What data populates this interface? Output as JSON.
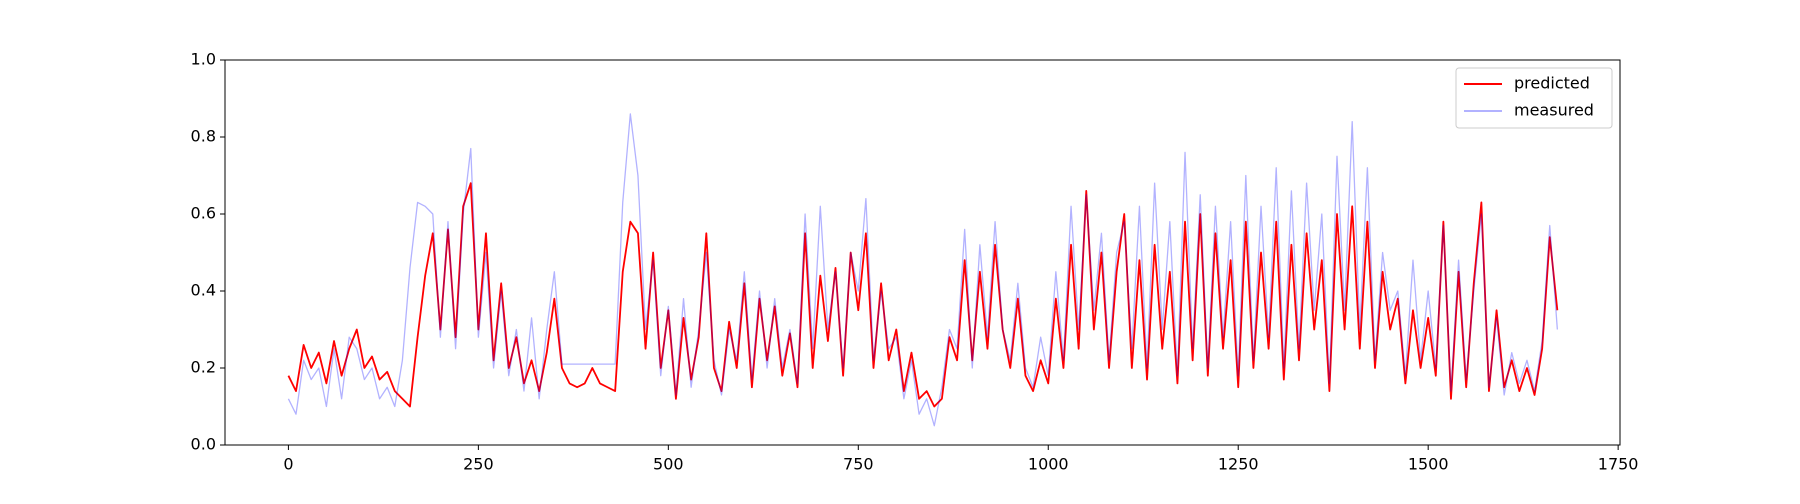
{
  "chart_data": {
    "type": "line",
    "x": [
      0,
      10,
      20,
      30,
      40,
      50,
      60,
      70,
      80,
      90,
      100,
      110,
      120,
      130,
      140,
      150,
      160,
      170,
      180,
      190,
      200,
      210,
      220,
      230,
      240,
      250,
      260,
      270,
      280,
      290,
      300,
      310,
      320,
      330,
      340,
      350,
      360,
      370,
      380,
      390,
      400,
      410,
      420,
      430,
      440,
      450,
      460,
      470,
      480,
      490,
      500,
      510,
      520,
      530,
      540,
      550,
      560,
      570,
      580,
      590,
      600,
      610,
      620,
      630,
      640,
      650,
      660,
      670,
      680,
      690,
      700,
      710,
      720,
      730,
      740,
      750,
      760,
      770,
      780,
      790,
      800,
      810,
      820,
      830,
      840,
      850,
      860,
      870,
      880,
      890,
      900,
      910,
      920,
      930,
      940,
      950,
      960,
      970,
      980,
      990,
      1000,
      1010,
      1020,
      1030,
      1040,
      1050,
      1060,
      1070,
      1080,
      1090,
      1100,
      1110,
      1120,
      1130,
      1140,
      1150,
      1160,
      1170,
      1180,
      1190,
      1200,
      1210,
      1220,
      1230,
      1240,
      1250,
      1260,
      1270,
      1280,
      1290,
      1300,
      1310,
      1320,
      1330,
      1340,
      1350,
      1360,
      1370,
      1380,
      1390,
      1400,
      1410,
      1420,
      1430,
      1440,
      1450,
      1460,
      1470,
      1480,
      1490,
      1500,
      1510,
      1520,
      1530,
      1540,
      1550,
      1560,
      1570,
      1580,
      1590,
      1600,
      1610,
      1620,
      1630,
      1640,
      1650,
      1660,
      1670
    ],
    "series": [
      {
        "name": "predicted",
        "color": "#ff0000",
        "alpha": 1,
        "values": [
          0.18,
          0.14,
          0.26,
          0.2,
          0.24,
          0.16,
          0.27,
          0.18,
          0.25,
          0.3,
          0.2,
          0.23,
          0.17,
          0.19,
          0.14,
          0.12,
          0.1,
          0.28,
          0.44,
          0.55,
          0.3,
          0.56,
          0.28,
          0.62,
          0.68,
          0.3,
          0.55,
          0.22,
          0.42,
          0.2,
          0.28,
          0.16,
          0.22,
          0.14,
          0.24,
          0.38,
          0.2,
          0.16,
          0.15,
          0.16,
          0.2,
          0.16,
          0.15,
          0.14,
          0.45,
          0.58,
          0.55,
          0.25,
          0.5,
          0.2,
          0.35,
          0.12,
          0.33,
          0.17,
          0.28,
          0.55,
          0.2,
          0.14,
          0.32,
          0.2,
          0.42,
          0.15,
          0.38,
          0.22,
          0.36,
          0.18,
          0.29,
          0.15,
          0.55,
          0.2,
          0.44,
          0.27,
          0.46,
          0.18,
          0.5,
          0.35,
          0.55,
          0.2,
          0.42,
          0.22,
          0.3,
          0.14,
          0.24,
          0.12,
          0.14,
          0.1,
          0.12,
          0.28,
          0.22,
          0.48,
          0.22,
          0.45,
          0.25,
          0.52,
          0.3,
          0.2,
          0.38,
          0.18,
          0.14,
          0.22,
          0.16,
          0.38,
          0.2,
          0.52,
          0.25,
          0.66,
          0.3,
          0.5,
          0.2,
          0.45,
          0.6,
          0.2,
          0.48,
          0.17,
          0.52,
          0.25,
          0.45,
          0.16,
          0.58,
          0.22,
          0.6,
          0.18,
          0.55,
          0.25,
          0.48,
          0.15,
          0.58,
          0.2,
          0.5,
          0.25,
          0.58,
          0.17,
          0.52,
          0.22,
          0.55,
          0.3,
          0.48,
          0.14,
          0.6,
          0.3,
          0.62,
          0.25,
          0.58,
          0.2,
          0.45,
          0.3,
          0.38,
          0.16,
          0.35,
          0.2,
          0.33,
          0.18,
          0.58,
          0.12,
          0.45,
          0.15,
          0.42,
          0.63,
          0.14,
          0.35,
          0.15,
          0.22,
          0.14,
          0.2,
          0.13,
          0.25,
          0.54,
          0.35
        ]
      },
      {
        "name": "measured",
        "color": "#0000ff",
        "alpha": 0.3,
        "values": [
          0.12,
          0.08,
          0.22,
          0.17,
          0.2,
          0.1,
          0.25,
          0.12,
          0.28,
          0.25,
          0.17,
          0.2,
          0.12,
          0.15,
          0.1,
          0.22,
          0.46,
          0.63,
          0.62,
          0.6,
          0.28,
          0.58,
          0.25,
          0.6,
          0.77,
          0.28,
          0.5,
          0.2,
          0.4,
          0.18,
          0.3,
          0.14,
          0.33,
          0.12,
          0.3,
          0.45,
          0.21,
          0.21,
          0.21,
          0.21,
          0.21,
          0.21,
          0.21,
          0.21,
          0.63,
          0.86,
          0.7,
          0.3,
          0.48,
          0.18,
          0.36,
          0.13,
          0.38,
          0.15,
          0.3,
          0.5,
          0.22,
          0.13,
          0.3,
          0.22,
          0.45,
          0.17,
          0.4,
          0.2,
          0.38,
          0.2,
          0.3,
          0.16,
          0.6,
          0.25,
          0.62,
          0.3,
          0.45,
          0.2,
          0.5,
          0.4,
          0.64,
          0.22,
          0.4,
          0.25,
          0.28,
          0.12,
          0.22,
          0.08,
          0.12,
          0.05,
          0.15,
          0.3,
          0.25,
          0.56,
          0.2,
          0.52,
          0.28,
          0.58,
          0.3,
          0.22,
          0.42,
          0.2,
          0.15,
          0.28,
          0.18,
          0.45,
          0.22,
          0.62,
          0.3,
          0.65,
          0.35,
          0.55,
          0.22,
          0.5,
          0.58,
          0.25,
          0.62,
          0.2,
          0.68,
          0.3,
          0.58,
          0.18,
          0.76,
          0.25,
          0.65,
          0.2,
          0.62,
          0.28,
          0.58,
          0.18,
          0.7,
          0.22,
          0.62,
          0.28,
          0.72,
          0.2,
          0.66,
          0.25,
          0.68,
          0.35,
          0.6,
          0.16,
          0.75,
          0.35,
          0.84,
          0.3,
          0.72,
          0.22,
          0.5,
          0.35,
          0.4,
          0.18,
          0.48,
          0.22,
          0.4,
          0.2,
          0.57,
          0.14,
          0.48,
          0.17,
          0.4,
          0.6,
          0.15,
          0.33,
          0.13,
          0.24,
          0.16,
          0.22,
          0.14,
          0.27,
          0.57,
          0.3
        ]
      }
    ],
    "xlim": [
      -83.45,
      1752.45
    ],
    "ylim": [
      0,
      1
    ],
    "xticks": [
      0,
      250,
      500,
      750,
      1000,
      1250,
      1500,
      1750
    ],
    "yticks": [
      {
        "value": 0,
        "label": "0.0"
      },
      0.2,
      0.4,
      0.6,
      0.8,
      {
        "value": 1,
        "label": "1.0"
      }
    ],
    "legend": "upper right"
  }
}
